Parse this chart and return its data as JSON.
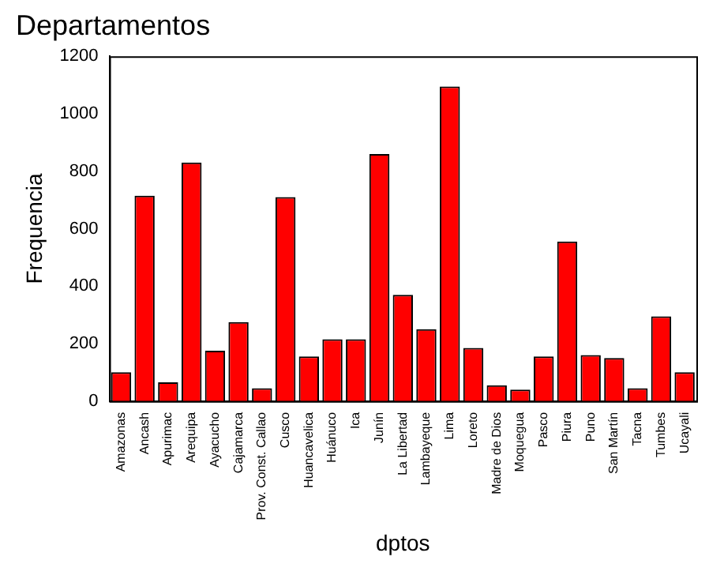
{
  "chart_data": {
    "type": "bar",
    "title": "Departamentos",
    "xlabel": "dptos",
    "ylabel": "Frequencia",
    "categories": [
      "Amazonas",
      "Ancash",
      "Apurimac",
      "Arequipa",
      "Ayacucho",
      "Cajamarca",
      "Prov. Const. Callao",
      "Cusco",
      "Huancavelica",
      "Huánuco",
      "Ica",
      "Junín",
      "La Libertad",
      "Lambayeque",
      "Lima",
      "Loreto",
      "Madre de Dios",
      "Moquegua",
      "Pasco",
      "Piura",
      "Puno",
      "San Martín",
      "Tacna",
      "Tumbes",
      "Ucayali"
    ],
    "values": [
      100,
      715,
      65,
      830,
      175,
      275,
      45,
      710,
      155,
      215,
      215,
      860,
      370,
      250,
      1095,
      185,
      55,
      40,
      155,
      555,
      160,
      150,
      45,
      295,
      100
    ],
    "color": "#ff0000",
    "ylim": [
      0,
      1200
    ],
    "yticks": [
      0,
      200,
      400,
      600,
      800,
      1000,
      1200
    ],
    "grid": false,
    "legend": false
  }
}
